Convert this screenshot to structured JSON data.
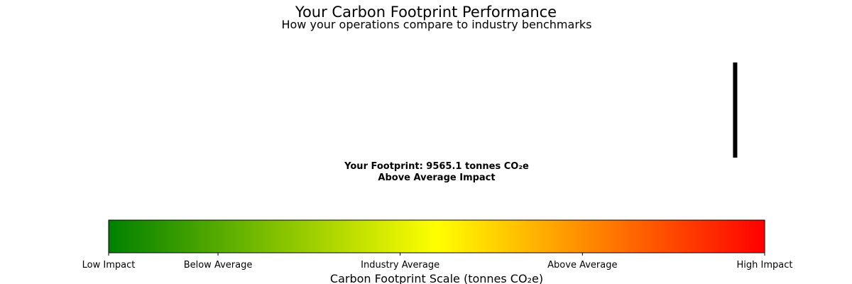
{
  "chart_data": {
    "type": "gauge",
    "title": "Your Carbon Footprint Performance",
    "subtitle": "How your operations compare to industry benchmarks",
    "xlabel": "Carbon Footprint Scale (tonnes CO₂e)",
    "value": 0.955,
    "value_text_line1": "Your Footprint: 9565.1 tonnes CO₂e",
    "value_text_line2": "Above Average Impact",
    "ticks": [
      {
        "position": 0.0,
        "label": "Low Impact"
      },
      {
        "position": 0.1667,
        "label": "Below Average"
      },
      {
        "position": 0.4444,
        "label": "Industry Average"
      },
      {
        "position": 0.7222,
        "label": "Above Average"
      },
      {
        "position": 1.0,
        "label": "High Impact"
      }
    ],
    "colorscale": [
      "#008000",
      "#ffff00",
      "#ff0000"
    ],
    "marker_color": "#000000"
  }
}
